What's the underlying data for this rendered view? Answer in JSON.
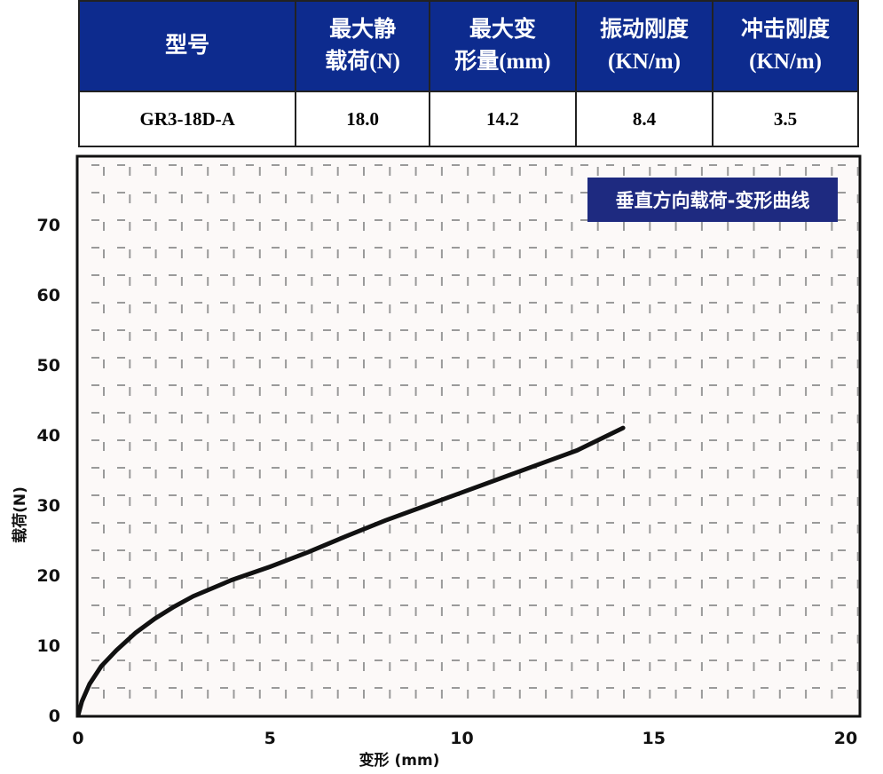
{
  "table": {
    "headers": [
      [
        "型号"
      ],
      [
        "最大静",
        "载荷(N)"
      ],
      [
        "最大变",
        "形量(mm)"
      ],
      [
        "振动刚度",
        "(KN/m)"
      ],
      [
        "冲击刚度",
        "(KN/m)"
      ]
    ],
    "rows": [
      [
        "GR3-18D-A",
        "18.0",
        "14.2",
        "8.4",
        "3.5"
      ]
    ],
    "header_color": "#0d2b8e"
  },
  "chart_data": {
    "type": "line",
    "title": "垂直方向载荷-变形曲线",
    "xlabel": "变形 (mm)",
    "ylabel": "载荷(N)",
    "xlim": [
      0,
      20
    ],
    "ylim": [
      0,
      80
    ],
    "xticks": [
      0,
      5,
      10,
      15,
      20
    ],
    "yticks": [
      0,
      10,
      20,
      30,
      40,
      50,
      60,
      70
    ],
    "grid": true,
    "legend_placement": "top-right",
    "series": [
      {
        "color": "#111111",
        "x": [
          0,
          0.1,
          0.3,
          0.6,
          1,
          1.5,
          2,
          2.5,
          3,
          4,
          5,
          6,
          7,
          8,
          9,
          10,
          11,
          12,
          13,
          14.2
        ],
        "y": [
          0,
          2,
          4.5,
          7,
          9.3,
          11.8,
          13.8,
          15.5,
          17,
          19.3,
          21.2,
          23.3,
          25.6,
          27.8,
          29.8,
          31.8,
          33.8,
          35.8,
          37.8,
          41
        ]
      }
    ]
  }
}
